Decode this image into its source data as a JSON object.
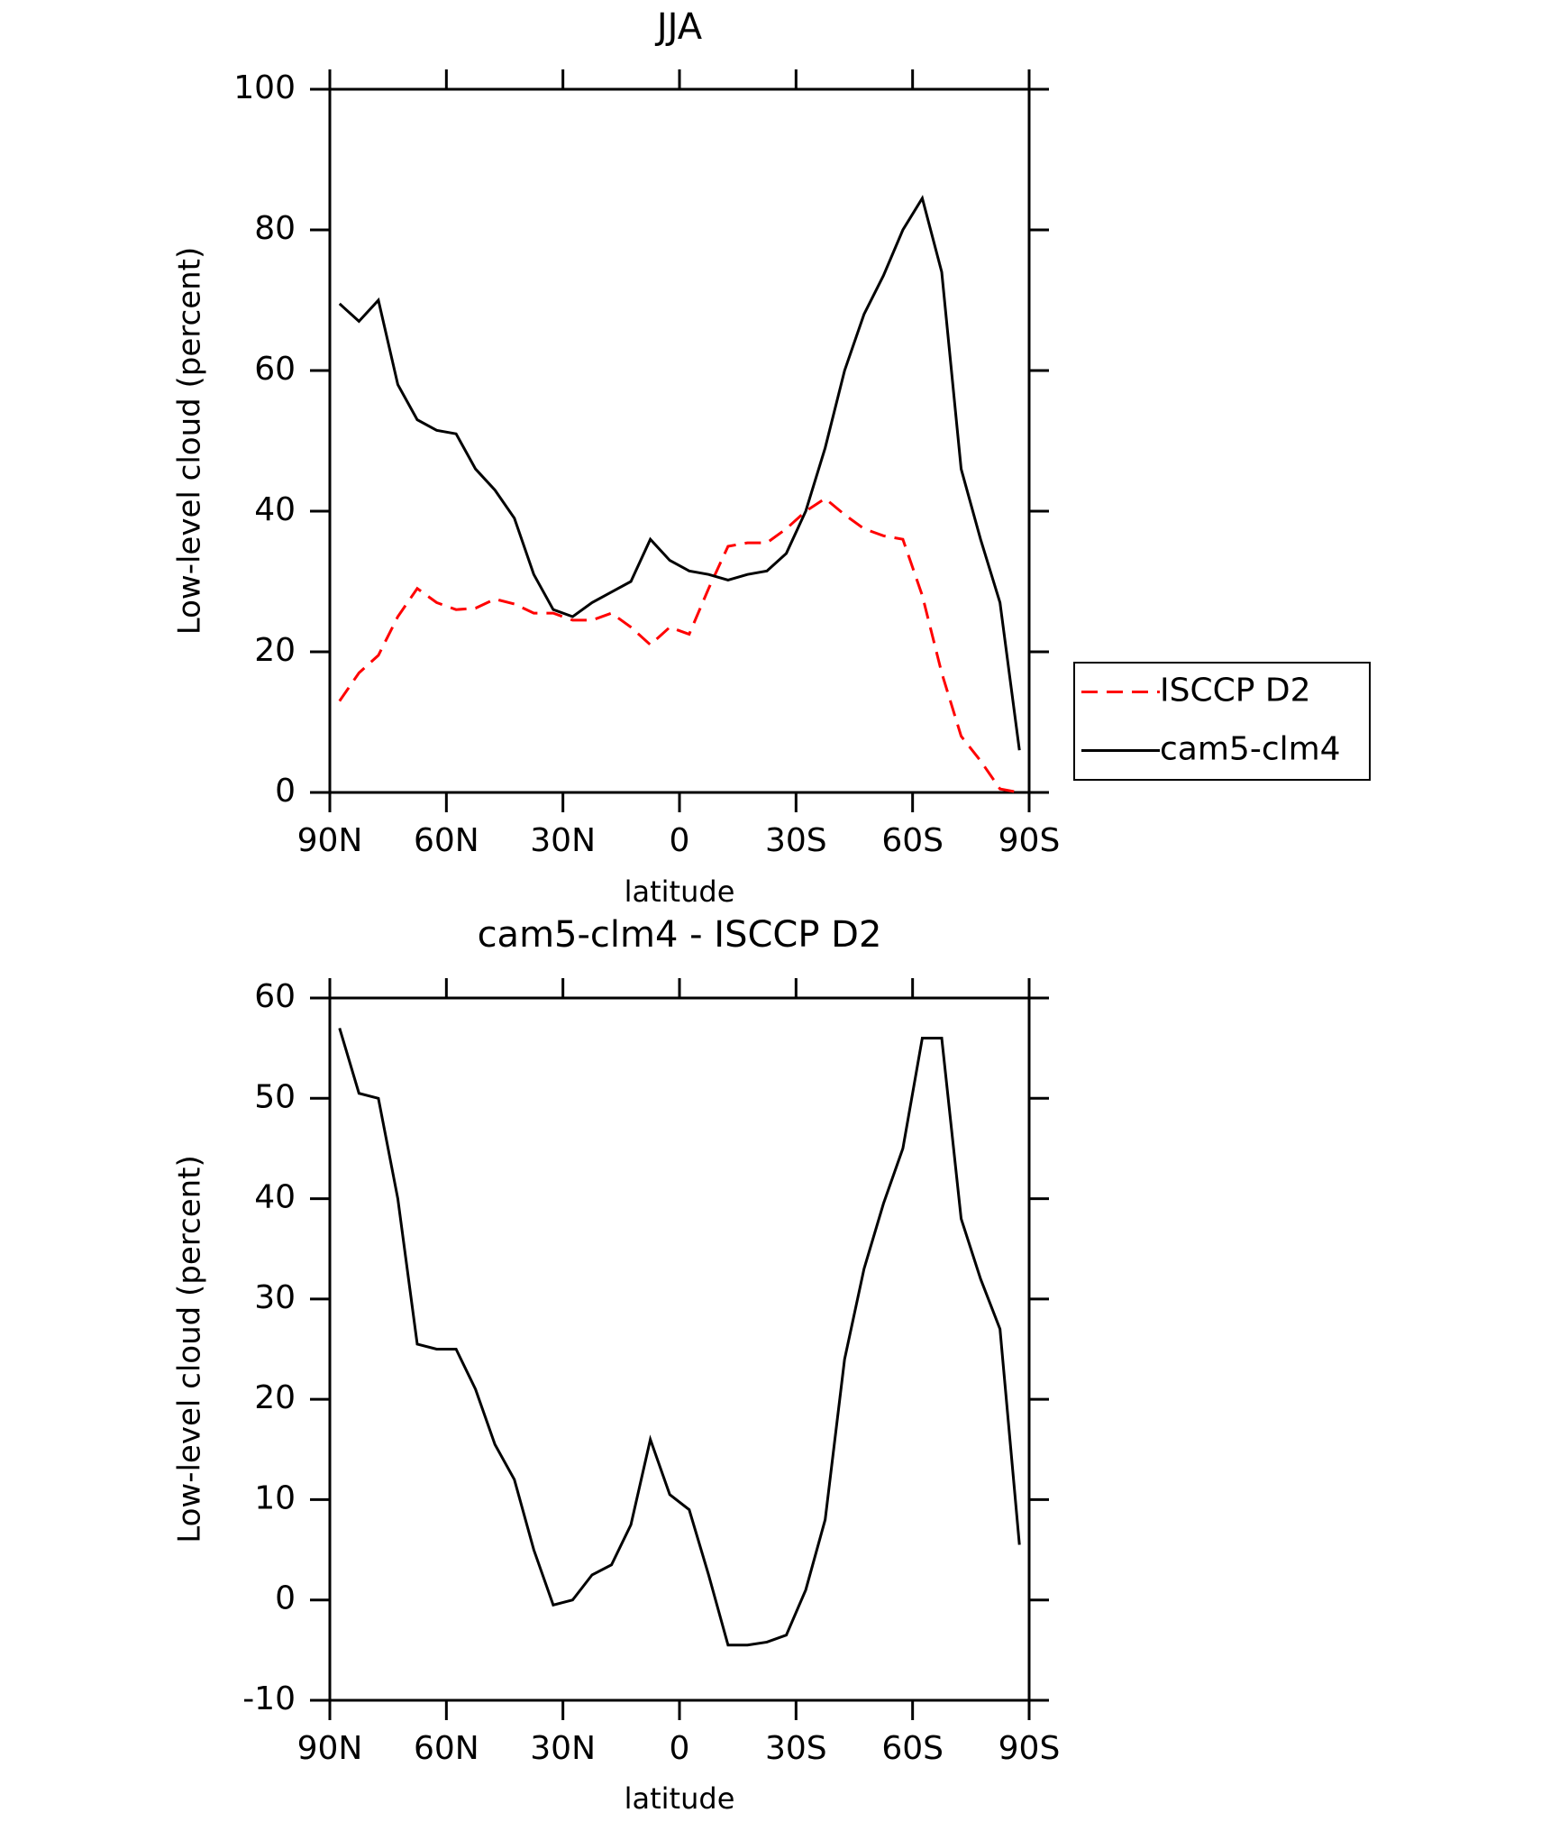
{
  "chart_data": [
    {
      "type": "line",
      "title": "JJA",
      "x_label": "latitude",
      "y_label": "Low-level cloud (percent)",
      "x": [
        87.5,
        82.5,
        77.5,
        72.5,
        67.5,
        62.5,
        57.5,
        52.5,
        47.5,
        42.5,
        37.5,
        32.5,
        27.5,
        22.5,
        17.5,
        12.5,
        7.5,
        2.5,
        -2.5,
        -7.5,
        -12.5,
        -17.5,
        -22.5,
        -27.5,
        -32.5,
        -37.5,
        -42.5,
        -47.5,
        -52.5,
        -57.5,
        -62.5,
        -67.5,
        -72.5,
        -77.5,
        -82.5,
        -87.5
      ],
      "series": [
        {
          "name": "ISCCP D2",
          "color": "#ff0000",
          "dashed": true,
          "values": [
            13,
            17,
            19.5,
            25,
            29,
            27,
            26,
            26.2,
            27.5,
            26.8,
            25.5,
            25.5,
            24.5,
            24.5,
            25.5,
            23.5,
            21,
            23.5,
            22.5,
            29,
            35,
            35.5,
            35.5,
            37.5,
            40,
            41.8,
            39.5,
            37.5,
            36.5,
            36,
            28,
            17,
            8,
            4.5,
            0.5,
            0
          ]
        },
        {
          "name": "cam5-clm4",
          "color": "#000000",
          "dashed": false,
          "values": [
            69.5,
            67,
            70,
            58,
            53,
            51.5,
            51,
            46,
            43,
            39,
            31,
            26,
            25,
            27,
            28.5,
            30,
            36,
            33,
            31.5,
            31,
            30.2,
            31,
            31.5,
            34,
            40,
            49,
            60,
            68,
            73.5,
            80,
            84.5,
            74,
            46,
            36,
            27,
            6
          ]
        }
      ],
      "xlim": [
        90,
        -90
      ],
      "xticks": [
        {
          "value": 90,
          "label": "90N"
        },
        {
          "value": 60,
          "label": "60N"
        },
        {
          "value": 30,
          "label": "30N"
        },
        0,
        {
          "value": -30,
          "label": "30S"
        },
        {
          "value": -60,
          "label": "60S"
        },
        {
          "value": -90,
          "label": "90S"
        }
      ],
      "ylim": [
        0,
        100
      ],
      "yticks": [
        0,
        20,
        40,
        60,
        80,
        100
      ],
      "legend": "right"
    },
    {
      "type": "line",
      "title": "cam5-clm4 - ISCCP D2",
      "x_label": "latitude",
      "y_label": "Low-level cloud (percent)",
      "x": [
        87.5,
        82.5,
        77.5,
        72.5,
        67.5,
        62.5,
        57.5,
        52.5,
        47.5,
        42.5,
        37.5,
        32.5,
        27.5,
        22.5,
        17.5,
        12.5,
        7.5,
        2.5,
        -2.5,
        -7.5,
        -12.5,
        -17.5,
        -22.5,
        -27.5,
        -32.5,
        -37.5,
        -42.5,
        -47.5,
        -52.5,
        -57.5,
        -62.5,
        -67.5,
        -72.5,
        -77.5,
        -82.5,
        -87.5
      ],
      "series": [
        {
          "color": "#000000",
          "dashed": false,
          "values": [
            57,
            50.5,
            50,
            40,
            25.5,
            25,
            25,
            21,
            15.5,
            12,
            5,
            -0.5,
            0,
            2.5,
            3.5,
            7.5,
            16,
            10.5,
            9,
            2.5,
            -4.5,
            -4.5,
            -4.2,
            -3.5,
            1,
            8,
            24,
            33,
            39.5,
            45,
            56,
            56,
            38,
            32,
            27,
            5.5
          ]
        }
      ],
      "xlim": [
        90,
        -90
      ],
      "xticks": [
        {
          "value": 90,
          "label": "90N"
        },
        {
          "value": 60,
          "label": "60N"
        },
        {
          "value": 30,
          "label": "30N"
        },
        0,
        {
          "value": -30,
          "label": "30S"
        },
        {
          "value": -60,
          "label": "60S"
        },
        {
          "value": -90,
          "label": "90S"
        }
      ],
      "ylim": [
        -10,
        60
      ],
      "yticks": [
        -10,
        0,
        10,
        20,
        30,
        40,
        50,
        60
      ]
    }
  ]
}
